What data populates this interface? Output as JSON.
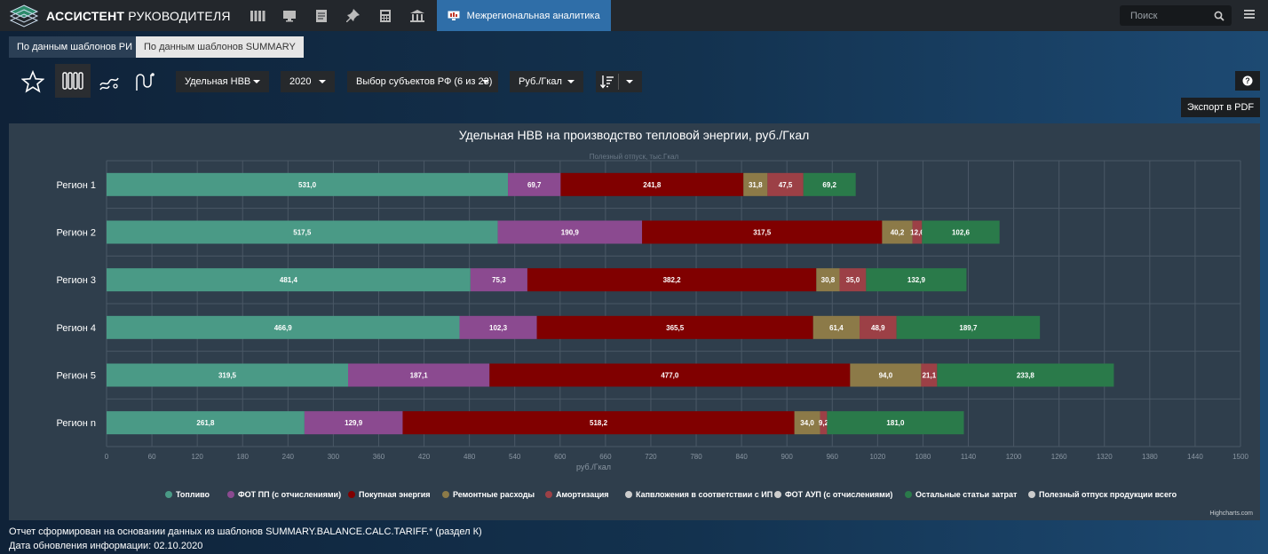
{
  "app": {
    "brand_bold": "АССИСТЕНТ",
    "brand_rest": " РУКОВОДИТЕЛЯ",
    "active_tab": "Межрегиональная аналитика",
    "search_placeholder": "Поиск"
  },
  "tabs": [
    {
      "label": "По данным шаблонов РИ"
    },
    {
      "label": "По данным шаблонов SUMMARY"
    }
  ],
  "toolbar": {
    "indicator": "Удельная НВВ",
    "year": "2020",
    "subjects": "Выбор субъектов РФ (6 из 23)",
    "unit": "Руб./Гкал",
    "export": "Экспорт в PDF"
  },
  "icons": [
    "star-icon",
    "radiator-icon",
    "steam-icon",
    "pipes-icon",
    "sort-icon",
    "help-icon",
    "search-icon",
    "menu-icon"
  ],
  "chart_data": {
    "type": "bar",
    "orientation": "horizontal",
    "stacked": true,
    "title": "Удельная НВВ на производство тепловой энергии, руб./Гкал",
    "subtitle": "Полезный отпуск, тыс.Гкал",
    "xlabel": "руб./Гкал",
    "xlim": [
      0,
      1500
    ],
    "xticks": [
      0,
      60,
      120,
      180,
      240,
      300,
      360,
      420,
      480,
      540,
      600,
      660,
      720,
      780,
      840,
      900,
      960,
      1020,
      1080,
      1140,
      1200,
      1260,
      1320,
      1380,
      1440,
      1500
    ],
    "grid": true,
    "legend_position": "bottom",
    "categories": [
      "Регион 1",
      "Регион 2",
      "Регион 3",
      "Регион 4",
      "Регион 5",
      "Регион n"
    ],
    "series": [
      {
        "name": "Топливо",
        "color": "#4a9a86",
        "values": [
          531.0,
          517.5,
          481.4,
          466.9,
          319.5,
          261.8
        ],
        "labels": [
          "531,0",
          "517,5",
          "481,4",
          "466,9",
          "319,5",
          "261,8"
        ]
      },
      {
        "name": "ФОТ ПП (с отчислениями)",
        "color": "#8b4a90",
        "values": [
          69.7,
          190.9,
          75.3,
          102.3,
          187.1,
          129.9
        ],
        "labels": [
          "69,7",
          "190,9",
          "75,3",
          "102,3",
          "187,1",
          "129,9"
        ]
      },
      {
        "name": "Покупная энергия",
        "color": "#800000",
        "values": [
          241.8,
          317.5,
          382.2,
          365.5,
          477.0,
          518.2
        ],
        "labels": [
          "241,8",
          "317,5",
          "382,2",
          "365,5",
          "477,0",
          "518,2"
        ]
      },
      {
        "name": "Ремонтные расходы",
        "color": "#8c7a48",
        "values": [
          31.8,
          40.2,
          30.8,
          61.4,
          94.0,
          34.0
        ],
        "labels": [
          "31,8",
          "40,2",
          "30,8",
          "61,4",
          "94,0",
          "34,0"
        ]
      },
      {
        "name": "Амортизация",
        "color": "#9c4046",
        "values": [
          47.5,
          12.6,
          35.0,
          48.9,
          21.1,
          9.2
        ],
        "labels": [
          "47,5",
          "12,6",
          "35,0",
          "48,9",
          "21,1",
          "9,2"
        ]
      },
      {
        "name": "Капвложения в соответствии с ИП",
        "color": "#cccccc",
        "values": [
          0,
          0,
          0,
          0,
          0,
          0
        ],
        "labels": [
          "",
          "",
          "",
          "",
          "",
          ""
        ]
      },
      {
        "name": "ФОТ АУП (с отчислениями)",
        "color": "#cccccc",
        "values": [
          0,
          0,
          0,
          0,
          0,
          0
        ],
        "labels": [
          "",
          "",
          "",
          "",
          "",
          ""
        ]
      },
      {
        "name": "Остальные статьи затрат",
        "color": "#2a7a4a",
        "values": [
          69.2,
          102.6,
          132.9,
          189.7,
          233.8,
          181.0
        ],
        "labels": [
          "69,2",
          "102,6",
          "132,9",
          "189,7",
          "233,8",
          "181,0"
        ]
      },
      {
        "name": "Полезный отпуск продукции всего",
        "color": "#cccccc",
        "values": [
          0,
          0,
          0,
          0,
          0,
          0
        ],
        "labels": [
          "",
          "",
          "",
          "",
          "",
          ""
        ]
      }
    ],
    "credits": "Highcharts.com"
  },
  "footer": {
    "source_note": "Отчет сформирован на основании данных из шаблонов SUMMARY.BALANCE.CALC.TARIFF.* (раздел К)",
    "update_date": "Дата обновления информации: 02.10.2020"
  }
}
